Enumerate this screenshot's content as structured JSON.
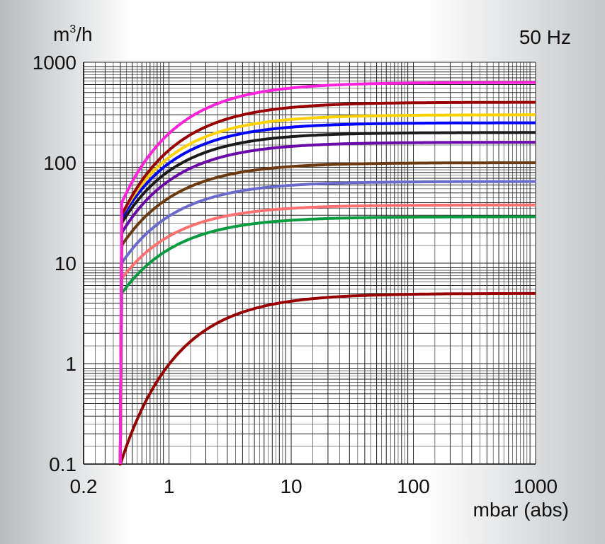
{
  "chart_data": {
    "type": "line",
    "title": "",
    "ylabel_base": "m",
    "ylabel_sup": "3",
    "ylabel_tail": "/h",
    "frequency_label": "50 Hz",
    "xlabel": "mbar (abs)",
    "x_scale": "log",
    "y_scale": "log",
    "xlim": [
      0.2,
      1000
    ],
    "ylim": [
      0.1,
      1000
    ],
    "x_ticks": [
      {
        "value": 0.2,
        "label": "0.2"
      },
      {
        "value": 1,
        "label": "1"
      },
      {
        "value": 10,
        "label": "10"
      },
      {
        "value": 100,
        "label": "100"
      },
      {
        "value": 1000,
        "label": "1000"
      }
    ],
    "y_ticks": [
      {
        "value": 0.1,
        "label": "0.1"
      },
      {
        "value": 1,
        "label": "1"
      },
      {
        "value": 10,
        "label": "10"
      },
      {
        "value": 100,
        "label": "100"
      },
      {
        "value": 1000,
        "label": "1000"
      }
    ],
    "grid": true,
    "series": [
      {
        "color": "#ff22dd",
        "x_min": 0.41,
        "y_start": 40,
        "y_max": 630
      },
      {
        "color": "#990000",
        "x_min": 0.41,
        "y_start": 30,
        "y_max": 400
      },
      {
        "color": "#ffd200",
        "x_min": 0.41,
        "y_start": 30,
        "y_max": 300
      },
      {
        "color": "#0000ff",
        "x_min": 0.41,
        "y_start": 28,
        "y_max": 250
      },
      {
        "color": "#1a1a1a",
        "x_min": 0.41,
        "y_start": 25,
        "y_max": 200
      },
      {
        "color": "#6a0aa8",
        "x_min": 0.41,
        "y_start": 20,
        "y_max": 160
      },
      {
        "color": "#6b3a10",
        "x_min": 0.41,
        "y_start": 15,
        "y_max": 100
      },
      {
        "color": "#6a6acc",
        "x_min": 0.41,
        "y_start": 10,
        "y_max": 65
      },
      {
        "color": "#ff7070",
        "x_min": 0.41,
        "y_start": 7,
        "y_max": 38
      },
      {
        "color": "#0a9a40",
        "x_min": 0.41,
        "y_start": 5,
        "y_max": 29
      },
      {
        "color": "#990000",
        "x_min": 0.4,
        "y_start": 0.1,
        "y_max": 5
      }
    ]
  }
}
